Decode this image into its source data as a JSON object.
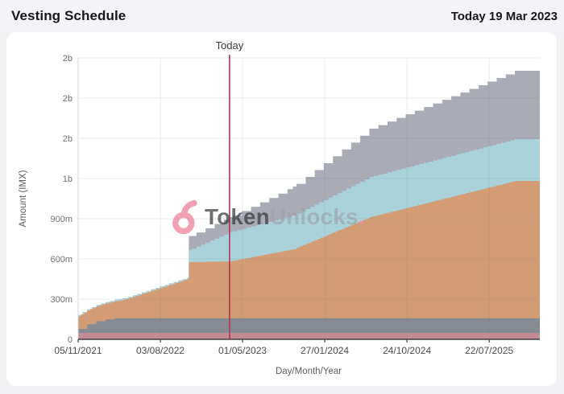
{
  "header": {
    "title": "Vesting Schedule",
    "today_date": "Today 19 Mar 2023"
  },
  "watermark": {
    "icon": "unlocked-padlock-icon",
    "bold_text": "Token",
    "light_text": "Unlocks",
    "period": ".",
    "brand_pink": "#ef8da3"
  },
  "chart_data": {
    "type": "area",
    "stacked": true,
    "value_unit": "IMX tokens (millions)",
    "x_unit": "days since 05/11/2021",
    "x_range": [
      0,
      1522
    ],
    "y_range": [
      0,
      2100
    ],
    "grid": true,
    "legend": "none",
    "y_axis": {
      "title": "Amount (IMX)",
      "ticks": [
        {
          "value": 0,
          "label": "0"
        },
        {
          "value": 300,
          "label": "300m"
        },
        {
          "value": 600,
          "label": "600m"
        },
        {
          "value": 900,
          "label": "900m"
        },
        {
          "value": 1200,
          "label": "1b"
        },
        {
          "value": 1500,
          "label": "2b"
        },
        {
          "value": 1800,
          "label": "2b"
        },
        {
          "value": 2100,
          "label": "2b"
        }
      ]
    },
    "x_axis": {
      "title": "Day/Month/Year",
      "ticks": [
        {
          "day": 0,
          "label": "05/11/2021"
        },
        {
          "day": 271,
          "label": "03/08/2022"
        },
        {
          "day": 542,
          "label": "01/05/2023"
        },
        {
          "day": 813,
          "label": "27/01/2024"
        },
        {
          "day": 1084,
          "label": "24/10/2024"
        },
        {
          "day": 1355,
          "label": "22/07/2025"
        }
      ]
    },
    "today_marker": {
      "label": "Today",
      "day": 499,
      "color": "#b23556"
    },
    "series_note": "stacked bottom-to-top; points are [day, millions of IMX] band heights; big cliff unlock at day 365 (Nov 2022); all bands plateau at day 1440; total reaches ~2b IMX",
    "series": [
      {
        "label": "band-1-rose",
        "color": "#c38b93",
        "step_days": 1600,
        "points": [
          [
            0,
            48
          ],
          [
            1522,
            48
          ]
        ]
      },
      {
        "label": "band-2-slate-gray",
        "color": "#868a92",
        "step_days": 30,
        "points": [
          [
            0,
            30
          ],
          [
            30,
            64
          ],
          [
            60,
            87
          ],
          [
            90,
            100
          ],
          [
            120,
            110
          ],
          [
            1522,
            110
          ]
        ]
      },
      {
        "label": "band-3-copper",
        "color": "#d49c74",
        "step_days": 10,
        "points": [
          [
            0,
            96
          ],
          [
            147,
            134
          ],
          [
            360,
            292
          ],
          [
            365,
            418
          ],
          [
            499,
            424
          ],
          [
            708,
            514
          ],
          [
            961,
            754
          ],
          [
            1440,
            1024
          ],
          [
            1522,
            1024
          ]
        ]
      },
      {
        "label": "band-4-light-blue",
        "color": "#a9d2da",
        "step_days": 15,
        "points": [
          [
            0,
            8
          ],
          [
            147,
            12
          ],
          [
            360,
            12
          ],
          [
            365,
            90
          ],
          [
            499,
            218
          ],
          [
            708,
            252
          ],
          [
            961,
            300
          ],
          [
            1440,
            312
          ],
          [
            1522,
            312
          ]
        ]
      },
      {
        "label": "band-5-cool-gray",
        "color": "#a9abb5",
        "step_days": 30,
        "points": [
          [
            0,
            0
          ],
          [
            360,
            0
          ],
          [
            365,
            105
          ],
          [
            499,
            112
          ],
          [
            708,
            216
          ],
          [
            961,
            360
          ],
          [
            1440,
            510
          ],
          [
            1522,
            510
          ]
        ]
      }
    ]
  }
}
